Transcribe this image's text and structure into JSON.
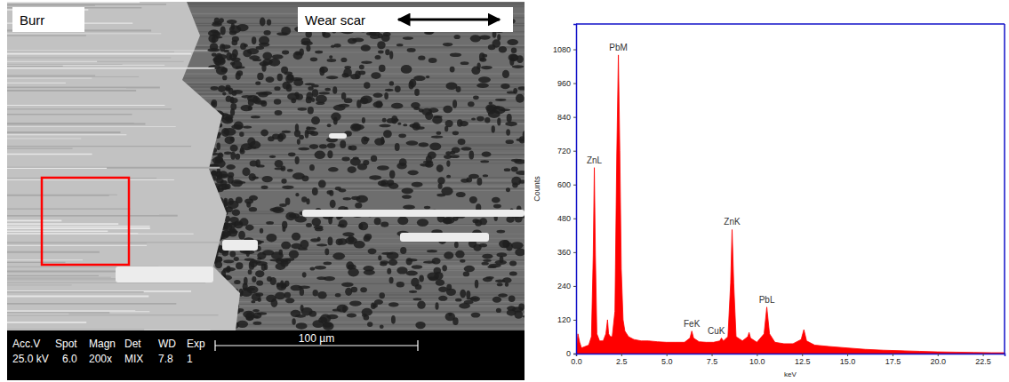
{
  "micrograph": {
    "labels": [
      "Burr",
      "Wear scar"
    ],
    "info_header": [
      "Acc.V",
      "Spot",
      "Magn",
      "Det",
      "WD",
      "Exp"
    ],
    "info_values": [
      "25.0 kV",
      "6.0",
      "200x",
      "MIX",
      "7.8",
      "1"
    ],
    "scale_bar": "100 µm"
  },
  "chart_data": {
    "type": "area",
    "x": [
      0.0,
      0.1,
      0.2,
      0.3,
      0.5,
      0.7,
      0.85,
      0.95,
      1.01,
      1.07,
      1.15,
      1.3,
      1.5,
      1.65,
      1.74,
      1.8,
      1.9,
      2.0,
      2.15,
      2.25,
      2.34,
      2.42,
      2.5,
      2.6,
      2.7,
      2.9,
      3.2,
      3.6,
      4.0,
      4.5,
      5.0,
      5.5,
      6.0,
      6.3,
      6.4,
      6.5,
      6.8,
      7.2,
      7.6,
      7.95,
      8.04,
      8.15,
      8.4,
      8.55,
      8.63,
      8.72,
      8.85,
      9.2,
      9.5,
      9.57,
      9.65,
      10.0,
      10.4,
      10.55,
      10.7,
      11.0,
      11.5,
      12.0,
      12.45,
      12.6,
      12.75,
      13.2,
      14.0,
      15.0,
      16.0,
      17.0,
      18.0,
      19.0,
      20.0,
      21.0,
      22.0,
      23.0,
      23.7
    ],
    "values": [
      0,
      70,
      40,
      20,
      25,
      30,
      60,
      350,
      660,
      350,
      70,
      45,
      45,
      70,
      120,
      70,
      60,
      60,
      150,
      700,
      1060,
      720,
      300,
      120,
      80,
      60,
      50,
      45,
      45,
      42,
      40,
      40,
      40,
      55,
      80,
      55,
      42,
      40,
      40,
      45,
      55,
      45,
      60,
      250,
      440,
      250,
      60,
      45,
      60,
      75,
      55,
      40,
      70,
      165,
      70,
      40,
      35,
      35,
      50,
      85,
      45,
      30,
      25,
      20,
      15,
      12,
      10,
      8,
      6,
      5,
      4,
      3,
      3
    ],
    "color": "#ff0000",
    "xlim": [
      0,
      23.7
    ],
    "ylim": [
      0,
      1170
    ],
    "xticks": [
      {
        "value": 0,
        "label": "0.0"
      },
      {
        "value": 2.5,
        "label": "2.5"
      },
      {
        "value": 5,
        "label": "5.0"
      },
      {
        "value": 7.5,
        "label": "7.5"
      },
      {
        "value": 10,
        "label": "10.0"
      },
      {
        "value": 12.5,
        "label": "12.5"
      },
      {
        "value": 15,
        "label": "15.0"
      },
      {
        "value": 17.5,
        "label": "17.5"
      },
      {
        "value": 20,
        "label": "20.0"
      },
      {
        "value": 22.5,
        "label": "22.5"
      }
    ],
    "yticks": [
      0,
      120,
      240,
      360,
      480,
      600,
      720,
      840,
      960,
      1080
    ],
    "x_label": "keV",
    "y_label": "Counts",
    "annotations": [
      {
        "text": "ZnL",
        "x": 1.01,
        "y": 660
      },
      {
        "text": "PbM",
        "x": 2.34,
        "y": 1060
      },
      {
        "text": "FeK",
        "x": 6.4,
        "y": 80
      },
      {
        "text": "CuK",
        "x": 8.04,
        "y": 55
      },
      {
        "text": "ZnK",
        "x": 8.63,
        "y": 440
      },
      {
        "text": "PbL",
        "x": 10.55,
        "y": 165
      }
    ]
  }
}
